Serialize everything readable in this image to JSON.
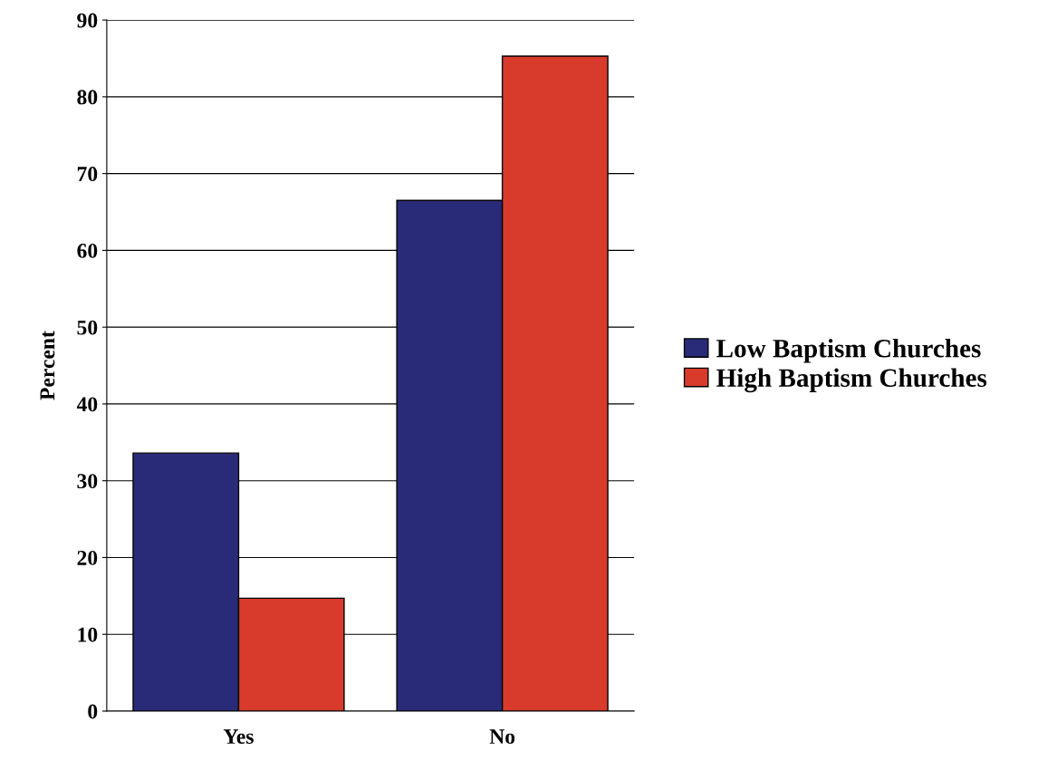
{
  "chart_data": {
    "type": "bar",
    "ylabel": "Percent",
    "categories": [
      "Yes",
      "No"
    ],
    "series": [
      {
        "name": "Low Baptism Churches",
        "color": "#2a2b78",
        "values": [
          33.6,
          66.5
        ]
      },
      {
        "name": "High Baptism Churches",
        "color": "#d83b2c",
        "values": [
          14.7,
          85.3
        ]
      }
    ],
    "ylim": [
      0,
      90
    ],
    "yticks": [
      0,
      10,
      20,
      30,
      40,
      50,
      60,
      70,
      80,
      90
    ],
    "grid": "y",
    "legend": "right"
  }
}
